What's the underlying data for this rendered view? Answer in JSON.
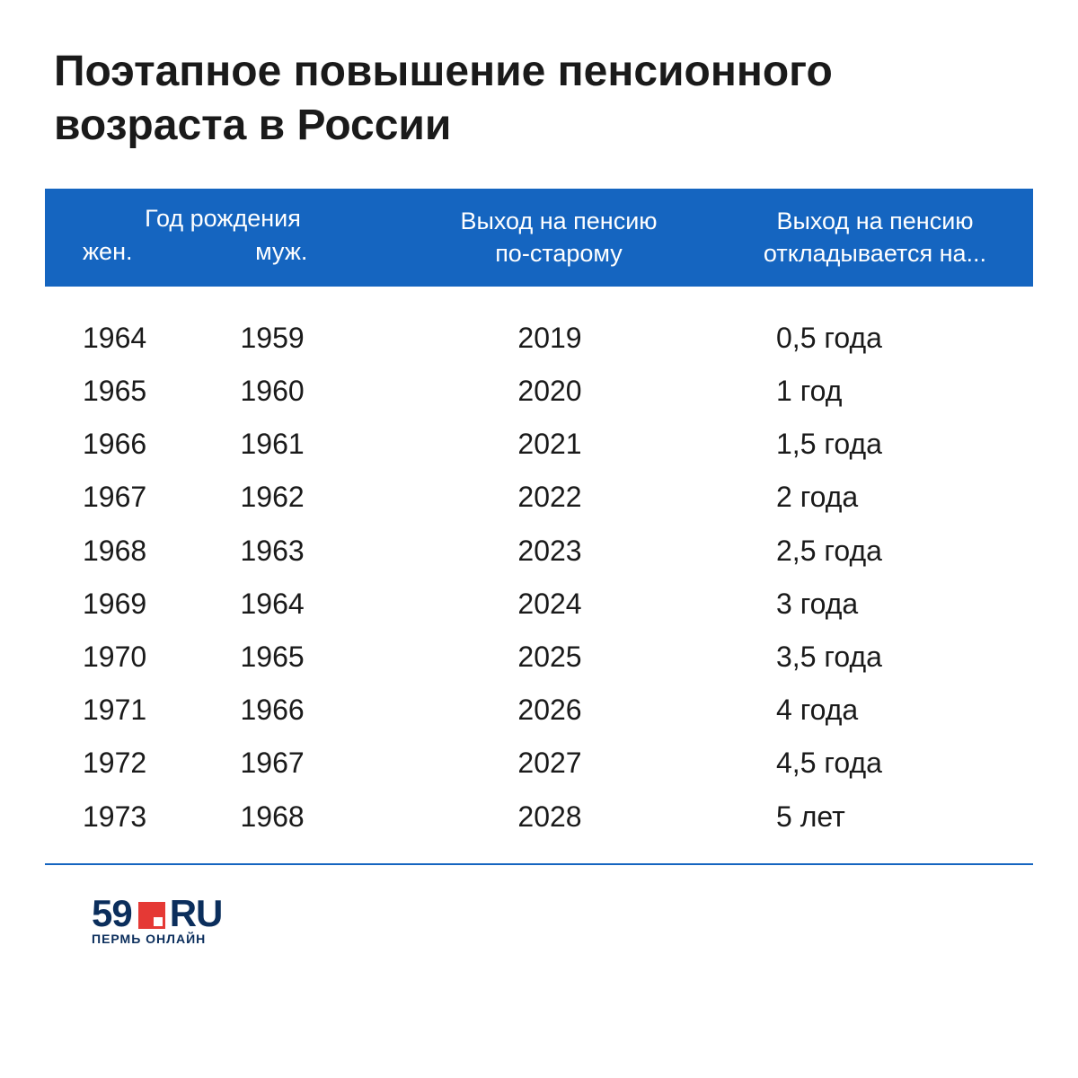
{
  "title": "Поэтапное повышение пенсионного возраста в России",
  "table": {
    "type": "table",
    "header": {
      "group1_top": "Год рождения",
      "group1_women": "жен.",
      "group1_men": "муж.",
      "group2_line1": "Выход на пенсию",
      "group2_line2": "по-старому",
      "group3_line1": "Выход на пенсию",
      "group3_line2": "откладывается на..."
    },
    "header_bg_color": "#1565c0",
    "header_text_color": "#ffffff",
    "header_fontsize": 27,
    "body_fontsize": 32,
    "body_text_color": "#1a1a1a",
    "bottom_border_color": "#1565c0",
    "columns": [
      "women_birth_year",
      "men_birth_year",
      "old_retirement_year",
      "delay"
    ],
    "rows": [
      {
        "women": "1964",
        "men": "1959",
        "old": "2019",
        "delay": "0,5 года"
      },
      {
        "women": "1965",
        "men": "1960",
        "old": "2020",
        "delay": "1 год"
      },
      {
        "women": "1966",
        "men": "1961",
        "old": "2021",
        "delay": "1,5 года"
      },
      {
        "women": "1967",
        "men": "1962",
        "old": "2022",
        "delay": "2 года"
      },
      {
        "women": "1968",
        "men": "1963",
        "old": "2023",
        "delay": "2,5 года"
      },
      {
        "women": "1969",
        "men": "1964",
        "old": "2024",
        "delay": "3 года"
      },
      {
        "women": "1970",
        "men": "1965",
        "old": "2025",
        "delay": "3,5 года"
      },
      {
        "women": "1971",
        "men": "1966",
        "old": "2026",
        "delay": "4 года"
      },
      {
        "women": "1972",
        "men": "1967",
        "old": "2027",
        "delay": "4,5 года"
      },
      {
        "women": "1973",
        "men": "1968",
        "old": "2028",
        "delay": "5 лет"
      }
    ]
  },
  "logo": {
    "number": "59",
    "suffix": "RU",
    "subtitle": "ПЕРМЬ ОНЛАЙН",
    "number_color": "#0b2e5c",
    "square_color": "#e53935"
  },
  "background_color": "#ffffff",
  "title_fontsize": 48,
  "title_color": "#1a1a1a"
}
